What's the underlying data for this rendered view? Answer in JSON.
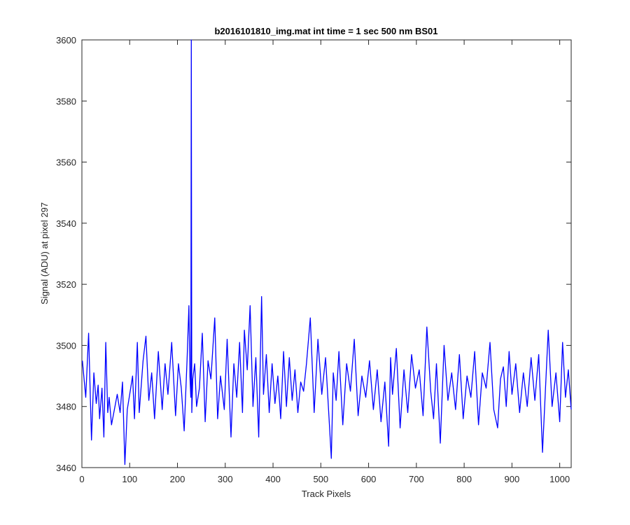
{
  "chart_data": {
    "type": "line",
    "title": "b2016101810_img.mat int time = 1 sec  500 nm BS01",
    "xlabel": "Track Pixels",
    "ylabel": "Signal (ADU) at pixel 297",
    "xlim": [
      0,
      1024
    ],
    "ylim": [
      3460,
      3600
    ],
    "xticks": [
      0,
      100,
      200,
      300,
      400,
      500,
      600,
      700,
      800,
      900,
      1000
    ],
    "yticks": [
      3460,
      3480,
      3500,
      3520,
      3540,
      3560,
      3580,
      3600
    ],
    "xtick_labels": [
      "0",
      "100",
      "200",
      "300",
      "400",
      "500",
      "600",
      "700",
      "800",
      "900",
      "1000"
    ],
    "ytick_labels": [
      "3460",
      "3480",
      "3500",
      "3520",
      "3540",
      "3560",
      "3580",
      "3600"
    ],
    "grid": false,
    "line_color": "#0000ff",
    "series": [
      {
        "x": [
          1,
          8,
          14,
          20,
          25,
          30,
          34,
          37,
          42,
          46,
          50,
          54,
          57,
          62,
          68,
          74,
          80,
          85,
          90,
          95,
          100,
          106,
          110,
          116,
          120,
          128,
          134,
          140,
          146,
          152,
          160,
          168,
          174,
          180,
          188,
          196,
          202,
          208,
          214,
          220,
          224,
          226,
          228,
          229,
          230,
          232,
          236,
          240,
          246,
          252,
          258,
          264,
          270,
          278,
          284,
          290,
          298,
          304,
          312,
          318,
          324,
          330,
          336,
          340,
          346,
          352,
          358,
          364,
          370,
          376,
          380,
          386,
          392,
          398,
          404,
          410,
          416,
          422,
          428,
          434,
          440,
          446,
          452,
          458,
          464,
          470,
          478,
          486,
          494,
          502,
          510,
          518,
          522,
          526,
          532,
          538,
          546,
          554,
          562,
          570,
          578,
          586,
          594,
          602,
          610,
          618,
          626,
          634,
          642,
          646,
          650,
          658,
          666,
          674,
          682,
          690,
          698,
          706,
          714,
          722,
          730,
          736,
          742,
          750,
          758,
          766,
          774,
          782,
          790,
          798,
          806,
          814,
          822,
          830,
          838,
          846,
          854,
          862,
          870,
          876,
          882,
          888,
          894,
          900,
          908,
          916,
          924,
          932,
          940,
          948,
          956,
          964,
          970,
          976,
          984,
          992,
          1000,
          1006,
          1012,
          1018,
          1024
        ],
        "y": [
          3495,
          3483,
          3504,
          3469,
          3491,
          3481,
          3487,
          3476,
          3486,
          3470,
          3501,
          3478,
          3483,
          3474,
          3479,
          3484,
          3478,
          3488,
          3461,
          3479,
          3484,
          3490,
          3476,
          3501,
          3478,
          3495,
          3503,
          3482,
          3491,
          3476,
          3498,
          3479,
          3494,
          3484,
          3501,
          3477,
          3494,
          3486,
          3472,
          3495,
          3513,
          3490,
          3483,
          3600,
          3478,
          3489,
          3494,
          3480,
          3486,
          3504,
          3475,
          3495,
          3489,
          3509,
          3476,
          3490,
          3479,
          3502,
          3470,
          3494,
          3483,
          3501,
          3478,
          3505,
          3492,
          3513,
          3480,
          3496,
          3470,
          3516,
          3484,
          3497,
          3478,
          3494,
          3481,
          3490,
          3476,
          3498,
          3480,
          3496,
          3482,
          3492,
          3478,
          3488,
          3485,
          3494,
          3509,
          3478,
          3502,
          3484,
          3496,
          3474,
          3463,
          3491,
          3482,
          3498,
          3474,
          3494,
          3485,
          3502,
          3477,
          3490,
          3483,
          3495,
          3479,
          3492,
          3475,
          3488,
          3467,
          3496,
          3484,
          3499,
          3473,
          3492,
          3478,
          3497,
          3486,
          3492,
          3477,
          3506,
          3485,
          3476,
          3494,
          3468,
          3500,
          3482,
          3491,
          3479,
          3497,
          3476,
          3490,
          3483,
          3498,
          3474,
          3491,
          3486,
          3501,
          3479,
          3473,
          3489,
          3493,
          3480,
          3498,
          3484,
          3494,
          3478,
          3491,
          3480,
          3496,
          3482,
          3497,
          3465,
          3485,
          3505,
          3480,
          3491,
          3475,
          3501,
          3483,
          3492,
          3479
        ]
      }
    ]
  }
}
